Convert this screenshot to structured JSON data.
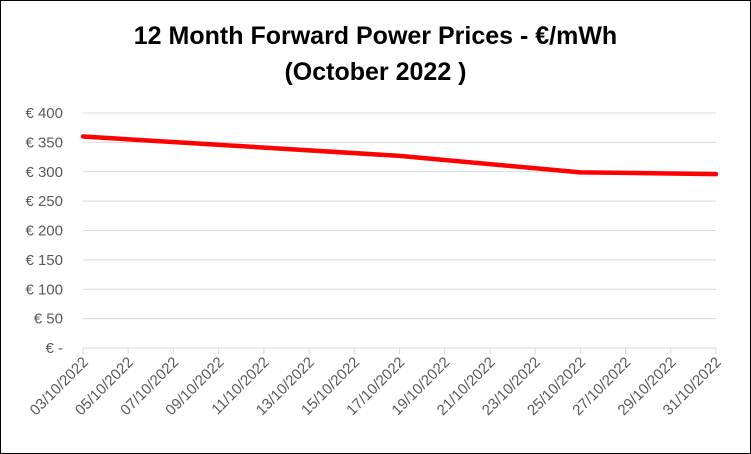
{
  "chart_data": {
    "type": "line",
    "title_lines": [
      "12 Month Forward Power Prices - €/mWh",
      "(October 2022 )"
    ],
    "xlabel": "",
    "ylabel": "",
    "x_tick_labels": [
      "03/10/2022",
      "05/10/2022",
      "07/10/2022",
      "09/10/2022",
      "11/10/2022",
      "13/10/2022",
      "15/10/2022",
      "17/10/2022",
      "19/10/2022",
      "21/10/2022",
      "23/10/2022",
      "25/10/2022",
      "27/10/2022",
      "29/10/2022",
      "31/10/2022"
    ],
    "y_tick_labels": [
      "€ -",
      "€ 50",
      "€ 100",
      "€ 150",
      "€ 200",
      "€ 250",
      "€ 300",
      "€ 350",
      "€ 400"
    ],
    "y_tick_values": [
      0,
      50,
      100,
      150,
      200,
      250,
      300,
      350,
      400
    ],
    "ylim": [
      0,
      400
    ],
    "xlim_day": [
      3,
      31
    ],
    "grid": true,
    "legend": "none",
    "series": [
      {
        "color": "#ff0000",
        "x_day": [
          3,
          17,
          25,
          31
        ],
        "values": [
          360,
          327,
          299,
          296
        ]
      }
    ]
  }
}
